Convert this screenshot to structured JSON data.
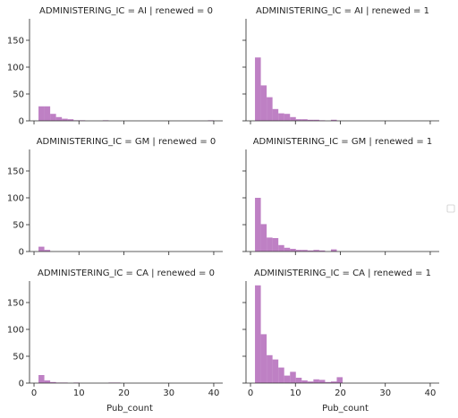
{
  "chart_data": {
    "type": "bar",
    "xlabel": "Pub_count",
    "xlim": [
      -1,
      42
    ],
    "ylim": [
      0,
      190
    ],
    "xticks": [
      0,
      10,
      20,
      30,
      40
    ],
    "yticks": [
      0,
      50,
      100,
      150
    ],
    "bin_width": 1.3,
    "legend": "center-right, empty",
    "color": "#a855b0",
    "facets": [
      {
        "title": "ADMINISTERING_IC = AI | renewed = 0",
        "bins": [
          {
            "x": 1.0,
            "y": 27
          },
          {
            "x": 2.3,
            "y": 27
          },
          {
            "x": 3.6,
            "y": 13
          },
          {
            "x": 4.9,
            "y": 7
          },
          {
            "x": 6.2,
            "y": 4
          },
          {
            "x": 7.5,
            "y": 3
          },
          {
            "x": 8.8,
            "y": 1
          },
          {
            "x": 10.1,
            "y": 1
          },
          {
            "x": 15.3,
            "y": 1
          },
          {
            "x": 38.7,
            "y": 1
          }
        ]
      },
      {
        "title": "ADMINISTERING_IC = AI | renewed = 1",
        "bins": [
          {
            "x": 1.0,
            "y": 118
          },
          {
            "x": 2.3,
            "y": 66
          },
          {
            "x": 3.6,
            "y": 44
          },
          {
            "x": 4.9,
            "y": 22
          },
          {
            "x": 6.2,
            "y": 14
          },
          {
            "x": 7.5,
            "y": 13
          },
          {
            "x": 8.8,
            "y": 7
          },
          {
            "x": 10.1,
            "y": 3
          },
          {
            "x": 11.4,
            "y": 3
          },
          {
            "x": 12.7,
            "y": 2
          },
          {
            "x": 14.0,
            "y": 2
          },
          {
            "x": 15.3,
            "y": 1
          },
          {
            "x": 17.9,
            "y": 2
          }
        ]
      },
      {
        "title": "ADMINISTERING_IC = GM | renewed = 0",
        "bins": [
          {
            "x": 1.0,
            "y": 9
          },
          {
            "x": 2.3,
            "y": 3
          }
        ]
      },
      {
        "title": "ADMINISTERING_IC = GM | renewed = 1",
        "bins": [
          {
            "x": 1.0,
            "y": 100
          },
          {
            "x": 2.3,
            "y": 51
          },
          {
            "x": 3.6,
            "y": 26
          },
          {
            "x": 4.9,
            "y": 25
          },
          {
            "x": 6.2,
            "y": 12
          },
          {
            "x": 7.5,
            "y": 7
          },
          {
            "x": 8.8,
            "y": 5
          },
          {
            "x": 10.1,
            "y": 3
          },
          {
            "x": 11.4,
            "y": 3
          },
          {
            "x": 12.7,
            "y": 2
          },
          {
            "x": 14.0,
            "y": 3
          },
          {
            "x": 15.3,
            "y": 2
          },
          {
            "x": 17.9,
            "y": 4
          }
        ]
      },
      {
        "title": "ADMINISTERING_IC = CA | renewed = 0",
        "bins": [
          {
            "x": 1.0,
            "y": 15
          },
          {
            "x": 2.3,
            "y": 5
          },
          {
            "x": 3.6,
            "y": 2
          },
          {
            "x": 4.9,
            "y": 1
          },
          {
            "x": 6.2,
            "y": 1
          },
          {
            "x": 8.8,
            "y": 1
          },
          {
            "x": 16.6,
            "y": 1
          },
          {
            "x": 17.9,
            "y": 1
          }
        ]
      },
      {
        "title": "ADMINISTERING_IC = CA | renewed = 1",
        "bins": [
          {
            "x": 1.0,
            "y": 182
          },
          {
            "x": 2.3,
            "y": 91
          },
          {
            "x": 3.6,
            "y": 52
          },
          {
            "x": 4.9,
            "y": 44
          },
          {
            "x": 6.2,
            "y": 29
          },
          {
            "x": 7.5,
            "y": 14
          },
          {
            "x": 8.8,
            "y": 21
          },
          {
            "x": 10.1,
            "y": 10
          },
          {
            "x": 11.4,
            "y": 5
          },
          {
            "x": 12.7,
            "y": 3
          },
          {
            "x": 14.0,
            "y": 7
          },
          {
            "x": 15.3,
            "y": 6
          },
          {
            "x": 16.6,
            "y": 2
          },
          {
            "x": 17.9,
            "y": 3
          },
          {
            "x": 19.2,
            "y": 11
          }
        ]
      }
    ]
  }
}
